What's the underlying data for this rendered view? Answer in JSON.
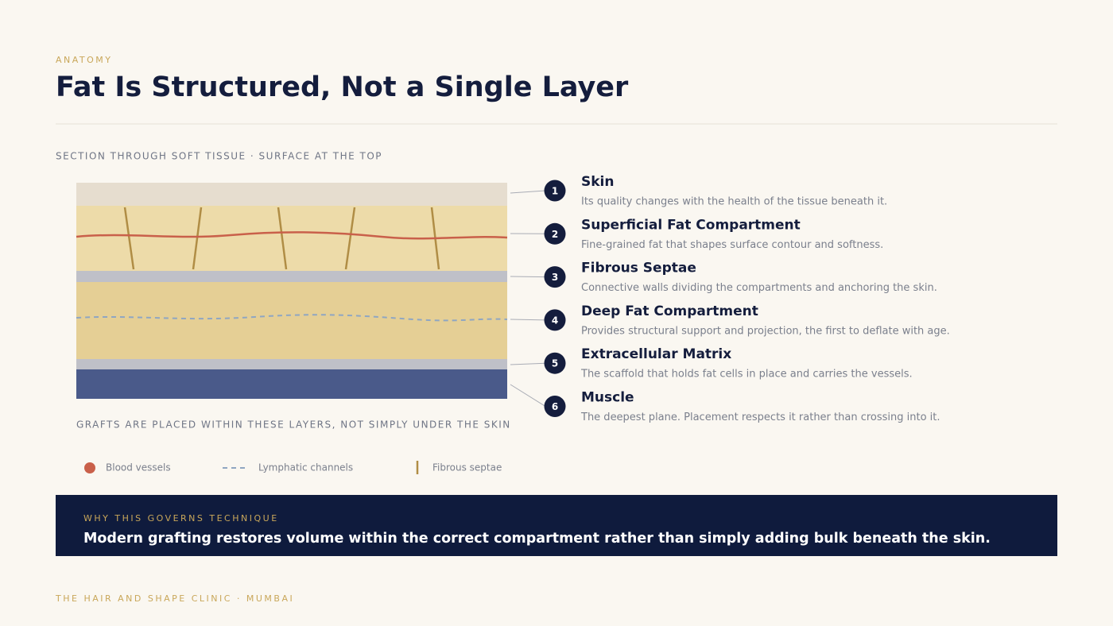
{
  "header": {
    "eyebrow": "ANATOMY",
    "title": "Fat Is Structured, Not a Single Layer"
  },
  "diagram": {
    "caption": "SECTION THROUGH SOFT TISSUE · SURFACE AT THE TOP",
    "note": "GRAFTS ARE PLACED WITHIN THESE LAYERS, NOT SIMPLY UNDER THE SKIN"
  },
  "layers": [
    {
      "number": "1",
      "name": "Skin",
      "description": "Its quality changes with the health of the tissue beneath it."
    },
    {
      "number": "2",
      "name": "Superficial Fat Compartment",
      "description": "Fine-grained fat that shapes surface contour and softness."
    },
    {
      "number": "3",
      "name": "Fibrous Septae",
      "description": "Connective walls dividing the compartments and anchoring the skin."
    },
    {
      "number": "4",
      "name": "Deep Fat Compartment",
      "description": "Provides structural support and projection, the first to deflate with age."
    },
    {
      "number": "5",
      "name": "Extracellular Matrix",
      "description": "The scaffold that holds fat cells in place and carries the vessels."
    },
    {
      "number": "6",
      "name": "Muscle",
      "description": "The deepest plane. Placement respects it rather than crossing into it."
    }
  ],
  "legend": [
    "Blood vessels",
    "Lymphatic channels",
    "Fibrous septae"
  ],
  "callout": {
    "label": "WHY THIS GOVERNS TECHNIQUE",
    "text": "Modern grafting restores volume within the correct compartment rather than simply adding bulk beneath the skin."
  },
  "footer": "THE HAIR AND SHAPE CLINIC · MUMBAI"
}
